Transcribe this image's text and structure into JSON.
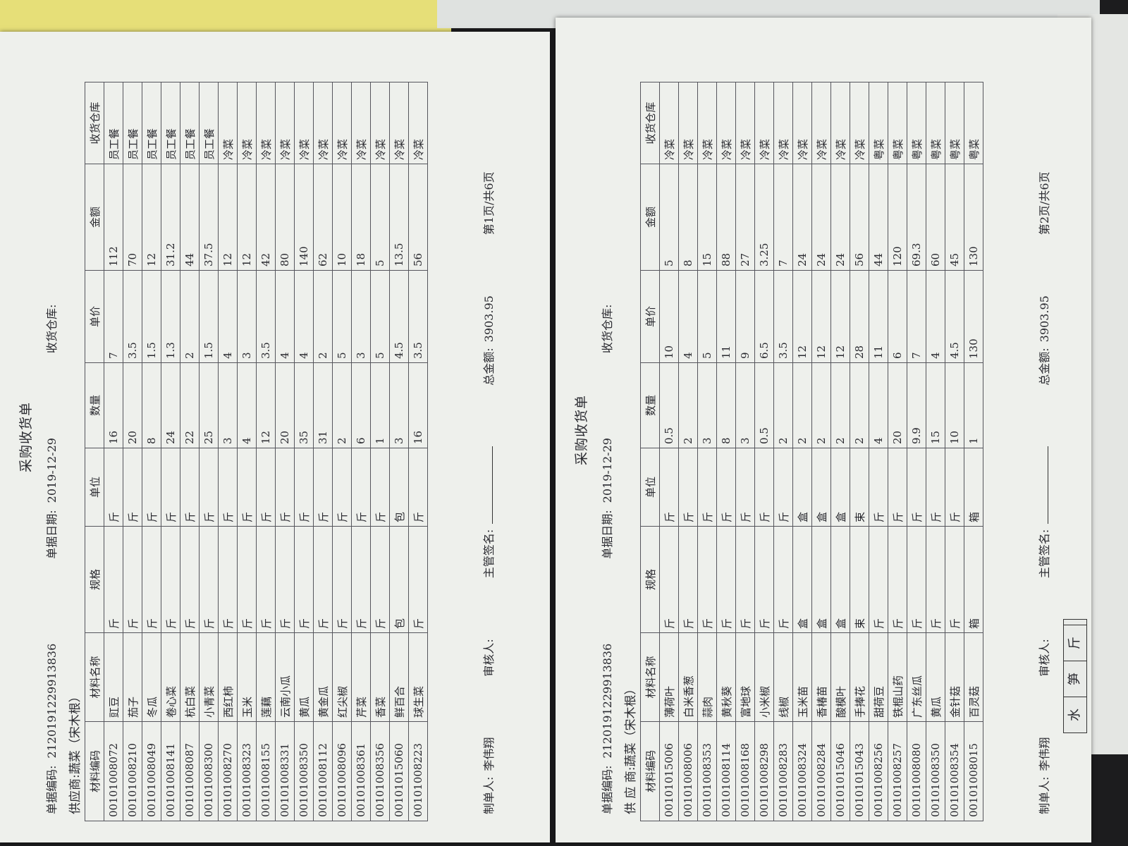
{
  "pages": [
    {
      "title": "采购收货单",
      "doc_no": {
        "label": "单据编码:",
        "value": "2120191229913836"
      },
      "doc_date": {
        "label": "单据日期:",
        "value": "2019-12-29"
      },
      "warehouse_label": "收货仓库:",
      "supplier": {
        "label": "供应商:",
        "value": "蔬菜（宋木根）"
      },
      "columns": [
        "材料编码",
        "材料名称",
        "规格",
        "单位",
        "数量",
        "单价",
        "金额",
        "收货仓库"
      ],
      "rows": [
        [
          "00101008072",
          "豇豆",
          "斤",
          "斤",
          16,
          7,
          112,
          "员工餐"
        ],
        [
          "00101008210",
          "茄子",
          "斤",
          "斤",
          20,
          3.5,
          70,
          "员工餐"
        ],
        [
          "00101008049",
          "冬瓜",
          "斤",
          "斤",
          8,
          1.5,
          12,
          "员工餐"
        ],
        [
          "00101008141",
          "卷心菜",
          "斤",
          "斤",
          24,
          1.3,
          31.2,
          "员工餐"
        ],
        [
          "00101008087",
          "杭白菜",
          "斤",
          "斤",
          22,
          2,
          44,
          "员工餐"
        ],
        [
          "00101008300",
          "小青菜",
          "斤",
          "斤",
          25,
          1.5,
          37.5,
          "员工餐"
        ],
        [
          "00101008270",
          "西红柿",
          "斤",
          "斤",
          3,
          4,
          12,
          "冷菜"
        ],
        [
          "00101008323",
          "玉米",
          "斤",
          "斤",
          4,
          3,
          12,
          "冷菜"
        ],
        [
          "00101008155",
          "莲藕",
          "斤",
          "斤",
          12,
          3.5,
          42,
          "冷菜"
        ],
        [
          "00101008331",
          "云南小瓜",
          "斤",
          "斤",
          20,
          4,
          80,
          "冷菜"
        ],
        [
          "00101008350",
          "黄瓜",
          "斤",
          "斤",
          35,
          4,
          140,
          "冷菜"
        ],
        [
          "00101008112",
          "黄金瓜",
          "斤",
          "斤",
          31,
          2,
          62,
          "冷菜"
        ],
        [
          "00101008096",
          "红尖椒",
          "斤",
          "斤",
          2,
          5,
          10,
          "冷菜"
        ],
        [
          "00101008361",
          "芹菜",
          "斤",
          "斤",
          6,
          3,
          18,
          "冷菜"
        ],
        [
          "00101008356",
          "香菜",
          "斤",
          "斤",
          1,
          5,
          5,
          "冷菜"
        ],
        [
          "00101015060",
          "鲜百合",
          "包",
          "包",
          3,
          4.5,
          13.5,
          "冷菜"
        ],
        [
          "00101008223",
          "球生菜",
          "斤",
          "斤",
          16,
          3.5,
          56,
          "冷菜"
        ]
      ],
      "maker": {
        "label": "制单人:",
        "value": "李伟翔"
      },
      "reviewer_label": "审核人:",
      "supervisor_label": "主管签名:",
      "total": {
        "label": "总金额:",
        "value": 3903.95
      },
      "page_info": "第1页/共6页"
    },
    {
      "title": "采购收货单",
      "doc_no": {
        "label": "单据编码:",
        "value": "2120191229913836"
      },
      "doc_date": {
        "label": "单据日期:",
        "value": "2019-12-29"
      },
      "warehouse_label": "收货仓库:",
      "supplier": {
        "label": "供 应 商:",
        "value": "蔬菜（宋木根）"
      },
      "columns": [
        "材料编码",
        "材料名称",
        "规格",
        "单位",
        "数量",
        "单价",
        "金额",
        "收货仓库"
      ],
      "rows": [
        [
          "00101015006",
          "薄荷叶",
          "斤",
          "斤",
          0.5,
          10,
          5,
          "冷菜"
        ],
        [
          "00101008006",
          "白米香葱",
          "斤",
          "斤",
          2,
          4,
          8,
          "冷菜"
        ],
        [
          "00101008353",
          "蒜肉",
          "斤",
          "斤",
          3,
          5,
          15,
          "冷菜"
        ],
        [
          "00101008114",
          "黄秋葵",
          "斤",
          "斤",
          8,
          11,
          88,
          "冷菜"
        ],
        [
          "00101008168",
          "富地球",
          "斤",
          "斤",
          3,
          9,
          27,
          "冷菜"
        ],
        [
          "00101008298",
          "小米椒",
          "斤",
          "斤",
          0.5,
          6.5,
          3.25,
          "冷菜"
        ],
        [
          "00101008283",
          "线椒",
          "斤",
          "斤",
          2,
          3.5,
          7,
          "冷菜"
        ],
        [
          "00101008324",
          "玉米苗",
          "盒",
          "盒",
          2,
          12,
          24,
          "冷菜"
        ],
        [
          "00101008284",
          "香椿苗",
          "盒",
          "盒",
          2,
          12,
          24,
          "冷菜"
        ],
        [
          "00101015046",
          "酸模叶",
          "盒",
          "盒",
          2,
          12,
          24,
          "冷菜"
        ],
        [
          "00101015043",
          "手捧花",
          "束",
          "束",
          2,
          28,
          56,
          "冷菜"
        ],
        [
          "00101008256",
          "甜荷豆",
          "斤",
          "斤",
          4,
          11,
          44,
          "粤菜"
        ],
        [
          "00101008257",
          "铁棍山药",
          "斤",
          "斤",
          20,
          6,
          120,
          "粤菜"
        ],
        [
          "00101008080",
          "广东丝瓜",
          "斤",
          "斤",
          9.9,
          7,
          69.3,
          "粤菜"
        ],
        [
          "00101008350",
          "黄瓜",
          "斤",
          "斤",
          15,
          4,
          60,
          "粤菜"
        ],
        [
          "00101008354",
          "金针菇",
          "斤",
          "斤",
          10,
          4.5,
          45,
          "粤菜"
        ],
        [
          "00101008015",
          "百灵菇",
          "箱",
          "箱",
          1,
          130,
          130,
          "粤菜"
        ]
      ],
      "maker": {
        "label": "制单人:",
        "value": "李伟翔"
      },
      "reviewer_label": "审核人:",
      "supervisor_label": "主管签名:",
      "total": {
        "label": "总金额:",
        "value": 3903.95
      },
      "page_info": "第2页/共6页"
    }
  ],
  "other_sheet": {
    "cells": [
      "水",
      "笋",
      "斤"
    ]
  }
}
